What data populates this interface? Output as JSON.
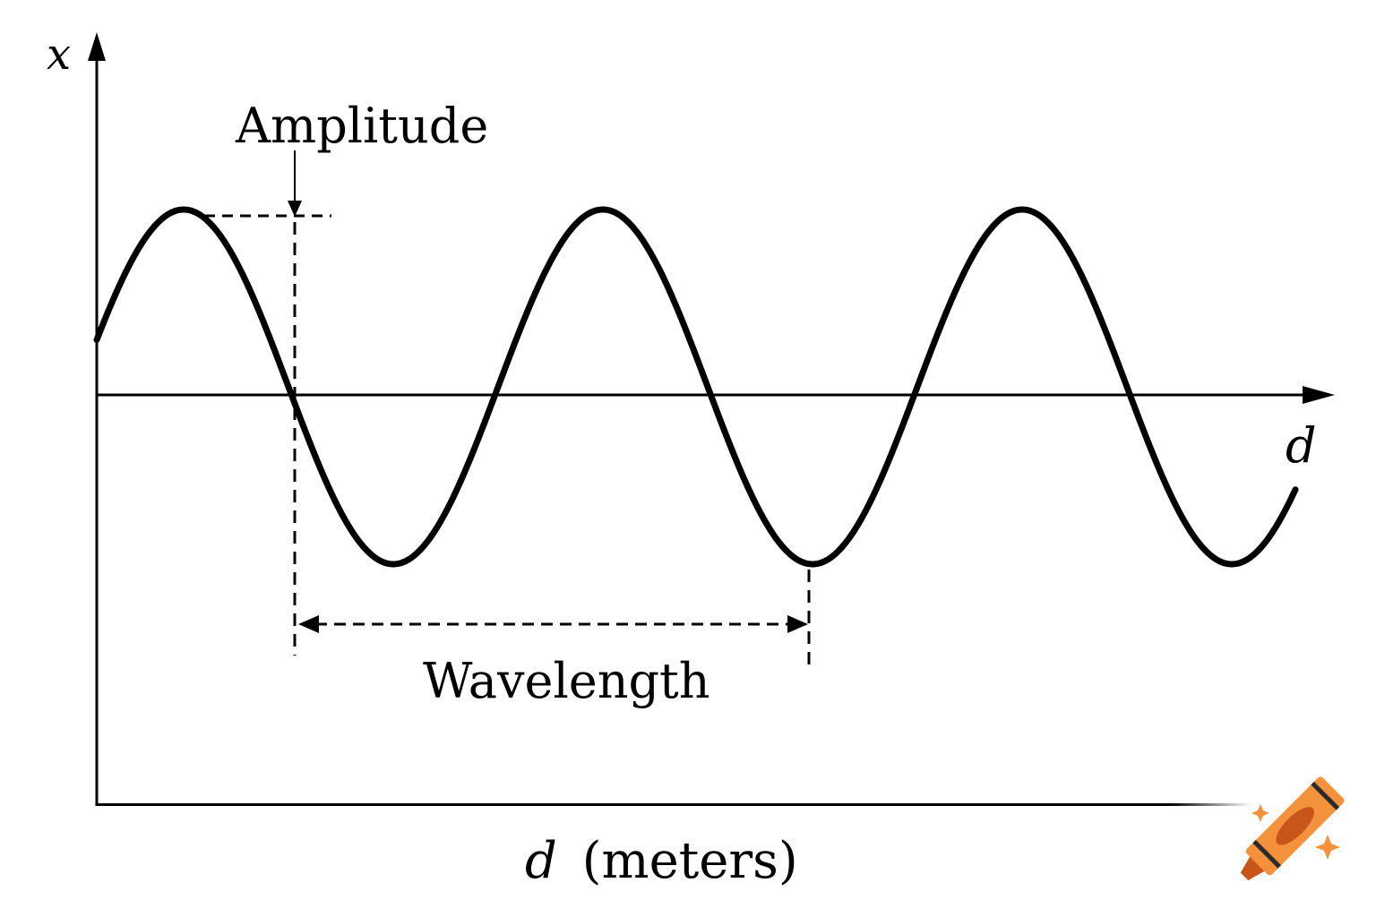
{
  "labels": {
    "y_axis": "x",
    "x_axis": "d",
    "amplitude": "Amplitude",
    "wavelength": "Wavelength",
    "bottom_axis_var": "d",
    "bottom_axis_unit": "(meters)"
  },
  "colors": {
    "ink": "#000000",
    "crayon_body": "#f3913d",
    "crayon_dark": "#c8561a",
    "crayon_band": "#2b2b2b"
  },
  "icons": [
    "crayon-logo-icon",
    "sparkle-icon"
  ]
}
